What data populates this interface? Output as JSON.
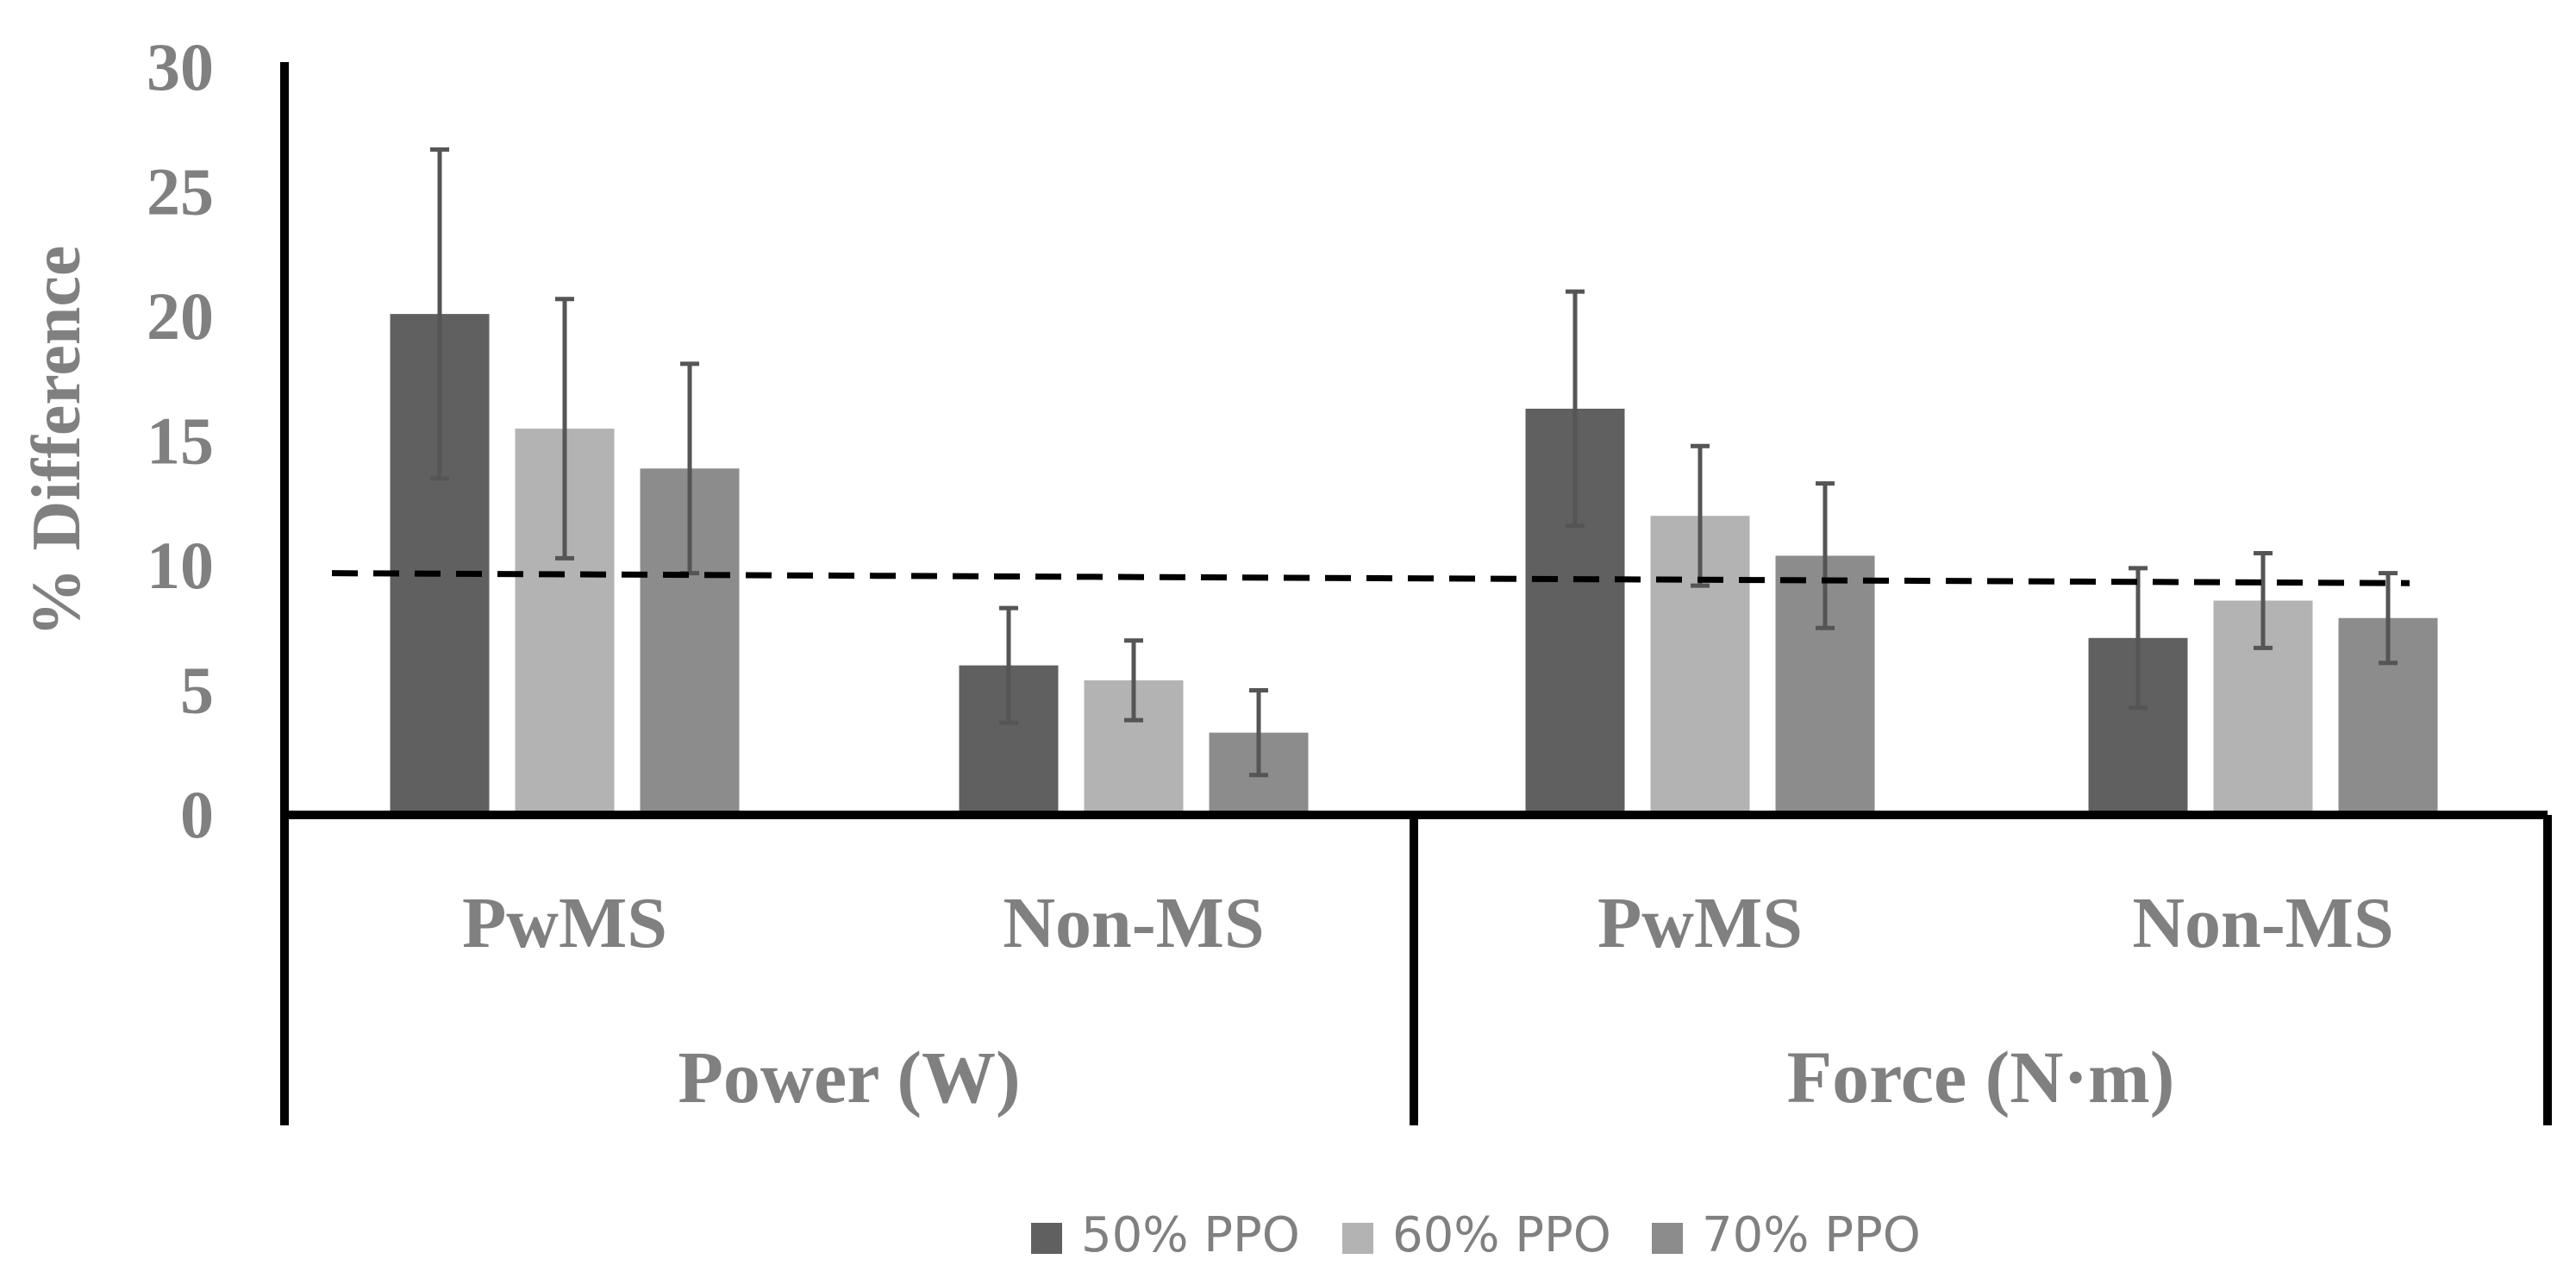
{
  "chart_data": {
    "type": "bar",
    "title": "",
    "ylabel": "% Difference",
    "xlabel": "",
    "ylim": [
      0,
      30
    ],
    "yticks": [
      0,
      5,
      10,
      15,
      20,
      25,
      30
    ],
    "categories": [
      "PwMS",
      "Non-MS",
      "PwMS",
      "Non-MS"
    ],
    "category_groups": [
      {
        "label": "Power (W)",
        "categories": [
          "PwMS",
          "Non-MS"
        ]
      },
      {
        "label": "Force (N·m)",
        "categories": [
          "PwMS",
          "Non-MS"
        ]
      }
    ],
    "series": [
      {
        "name": "50% PPO",
        "color": "#606060",
        "values": [
          20.1,
          6.0,
          16.3,
          7.1
        ],
        "errors": [
          6.6,
          2.3,
          4.7,
          2.8
        ]
      },
      {
        "name": "60% PPO",
        "color": "#b3b3b3",
        "values": [
          15.5,
          5.4,
          12.0,
          8.6
        ],
        "errors": [
          5.2,
          1.6,
          2.8,
          1.9
        ]
      },
      {
        "name": "70% PPO",
        "color": "#8c8c8c",
        "values": [
          13.9,
          3.3,
          10.4,
          7.9
        ],
        "errors": [
          4.2,
          1.7,
          2.9,
          1.8
        ]
      }
    ],
    "reference_line": {
      "style": "dashed",
      "color": "#000000",
      "y_start": 9.7,
      "y_end": 9.3
    },
    "legend": {
      "position": "bottom-center"
    }
  }
}
